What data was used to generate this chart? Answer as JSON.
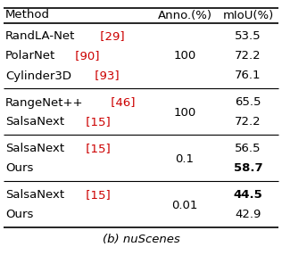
{
  "title": "(b) nuScenes",
  "col_headers": [
    "Method",
    "Anno.(%)",
    "mIoU(%)"
  ],
  "groups": [
    {
      "anno_shared": "100",
      "anno_row": 1,
      "rows": [
        {
          "method": "RandLA-Net",
          "cite": " [29]",
          "miou": "53.5",
          "miou_bold": false
        },
        {
          "method": "PolarNet",
          "cite": " [90]",
          "miou": "72.2",
          "miou_bold": false
        },
        {
          "method": "Cylinder3D",
          "cite": " [93]",
          "miou": "76.1",
          "miou_bold": false
        }
      ]
    },
    {
      "anno_shared": "100",
      "anno_row": 0,
      "rows": [
        {
          "method": "RangeNet++",
          "cite": " [46]",
          "miou": "65.5",
          "miou_bold": false
        },
        {
          "method": "SalsaNext",
          "cite": " [15]",
          "miou": "72.2",
          "miou_bold": false
        }
      ]
    },
    {
      "anno_shared": "0.1",
      "anno_row": 0,
      "rows": [
        {
          "method": "SalsaNext",
          "cite": " [15]",
          "miou": "56.5",
          "miou_bold": false
        },
        {
          "method": "Ours",
          "cite": "",
          "miou": "58.7",
          "miou_bold": true
        }
      ]
    },
    {
      "anno_shared": "0.01",
      "anno_row": 0,
      "rows": [
        {
          "method": "SalsaNext",
          "cite": " [15]",
          "miou": "44.5",
          "miou_bold": true
        },
        {
          "method": "Ours",
          "cite": "",
          "miou": "42.9",
          "miou_bold": false
        }
      ]
    }
  ],
  "cite_color": "#cc0000",
  "text_color": "#000000",
  "bg_color": "#ffffff",
  "fontsize": 9.5,
  "title_fontsize": 9.5
}
